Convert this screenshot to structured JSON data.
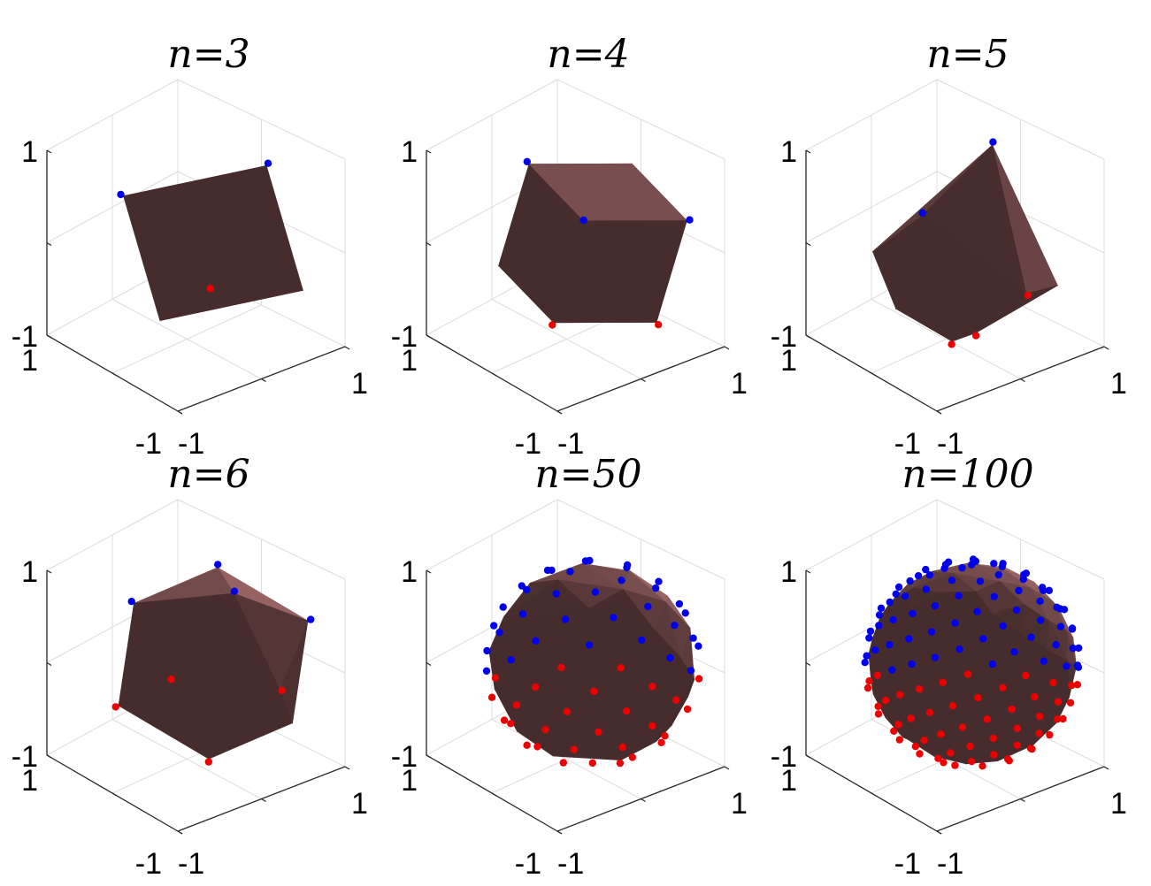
{
  "chart_data": [
    {
      "type": "scatter",
      "title": "n=3",
      "n": 3,
      "axes": {
        "x_ticks": [
          "-1",
          "1"
        ],
        "y_ticks": [
          "-1",
          "1"
        ],
        "z_ticks": [
          "-1",
          "1"
        ],
        "xlim": [
          -1,
          1
        ],
        "ylim": [
          -1,
          1
        ],
        "zlim": [
          -1,
          1
        ]
      },
      "grid": true,
      "shape": "octahedron",
      "colors": {
        "upper_points": "#0000ee",
        "lower_points": "#ee0000",
        "surface": "#8a5a5a"
      }
    },
    {
      "type": "scatter",
      "title": "n=4",
      "n": 4,
      "axes": {
        "x_ticks": [
          "-1",
          "1"
        ],
        "y_ticks": [
          "-1",
          "1"
        ],
        "z_ticks": [
          "-1",
          "1"
        ],
        "xlim": [
          -1,
          1
        ],
        "ylim": [
          -1,
          1
        ],
        "zlim": [
          -1,
          1
        ]
      },
      "grid": true,
      "shape": "cube",
      "colors": {
        "upper_points": "#0000ee",
        "lower_points": "#ee0000",
        "surface": "#8a5a5a"
      }
    },
    {
      "type": "scatter",
      "title": "n=5",
      "n": 5,
      "axes": {
        "x_ticks": [
          "-1",
          "1"
        ],
        "y_ticks": [
          "-1",
          "1"
        ],
        "z_ticks": [
          "-1",
          "1"
        ],
        "xlim": [
          -1,
          1
        ],
        "ylim": [
          -1,
          1
        ],
        "zlim": [
          -1,
          1
        ]
      },
      "grid": true,
      "shape": "pentagonal-polyhedron",
      "colors": {
        "upper_points": "#0000ee",
        "lower_points": "#ee0000",
        "surface": "#8a5a5a"
      }
    },
    {
      "type": "scatter",
      "title": "n=6",
      "n": 6,
      "axes": {
        "x_ticks": [
          "-1",
          "1"
        ],
        "y_ticks": [
          "-1",
          "1"
        ],
        "z_ticks": [
          "-1",
          "1"
        ],
        "xlim": [
          -1,
          1
        ],
        "ylim": [
          -1,
          1
        ],
        "zlim": [
          -1,
          1
        ]
      },
      "grid": true,
      "shape": "icosahedron",
      "colors": {
        "upper_points": "#0000ee",
        "lower_points": "#ee0000",
        "surface": "#8a5a5a"
      }
    },
    {
      "type": "scatter",
      "title": "n=50",
      "n": 50,
      "axes": {
        "x_ticks": [
          "-1",
          "1"
        ],
        "y_ticks": [
          "-1",
          "1"
        ],
        "z_ticks": [
          "-1",
          "1"
        ],
        "xlim": [
          -1,
          1
        ],
        "ylim": [
          -1,
          1
        ],
        "zlim": [
          -1,
          1
        ]
      },
      "grid": true,
      "shape": "sphere",
      "colors": {
        "upper_points": "#0000ee",
        "lower_points": "#ee0000",
        "surface": "#8a5a5a"
      }
    },
    {
      "type": "scatter",
      "title": "n=100",
      "n": 100,
      "axes": {
        "x_ticks": [
          "-1",
          "1"
        ],
        "y_ticks": [
          "-1",
          "1"
        ],
        "z_ticks": [
          "-1",
          "1"
        ],
        "xlim": [
          -1,
          1
        ],
        "ylim": [
          -1,
          1
        ],
        "zlim": [
          -1,
          1
        ]
      },
      "grid": true,
      "shape": "sphere",
      "colors": {
        "upper_points": "#0000ee",
        "lower_points": "#ee0000",
        "surface": "#8a5a5a"
      }
    }
  ]
}
